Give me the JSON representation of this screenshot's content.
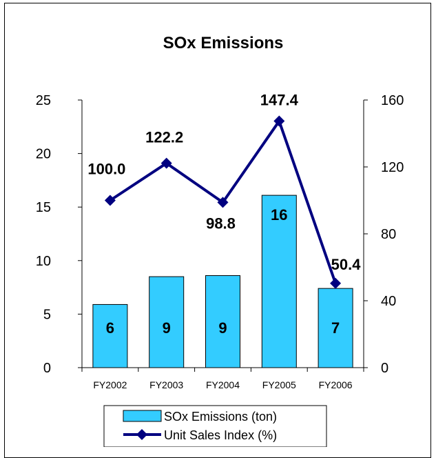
{
  "chart_data": {
    "type": "bar",
    "title": "SOx Emissions",
    "categories": [
      "FY2002",
      "FY2003",
      "FY2004",
      "FY2005",
      "FY2006"
    ],
    "series": [
      {
        "name": "SOx Emissions (ton)",
        "kind": "bar",
        "axis": "left",
        "values": [
          5.9,
          8.5,
          8.6,
          16.1,
          7.4
        ],
        "labels": [
          "6",
          "9",
          "9",
          "16",
          "7"
        ],
        "color": "#33CCFF"
      },
      {
        "name": "Unit Sales Index (%)",
        "kind": "line",
        "axis": "right",
        "values": [
          100.0,
          122.2,
          98.8,
          147.4,
          50.4
        ],
        "labels": [
          "100.0",
          "122.2",
          "98.8",
          "147.4",
          "50.4"
        ],
        "color": "#000080"
      }
    ],
    "y_left": {
      "lim": [
        0,
        25
      ],
      "ticks": [
        0,
        5,
        10,
        15,
        20,
        25
      ]
    },
    "y_right": {
      "lim": [
        0,
        160
      ],
      "ticks": [
        0,
        40,
        80,
        120,
        160
      ]
    },
    "legend": "bottom"
  }
}
